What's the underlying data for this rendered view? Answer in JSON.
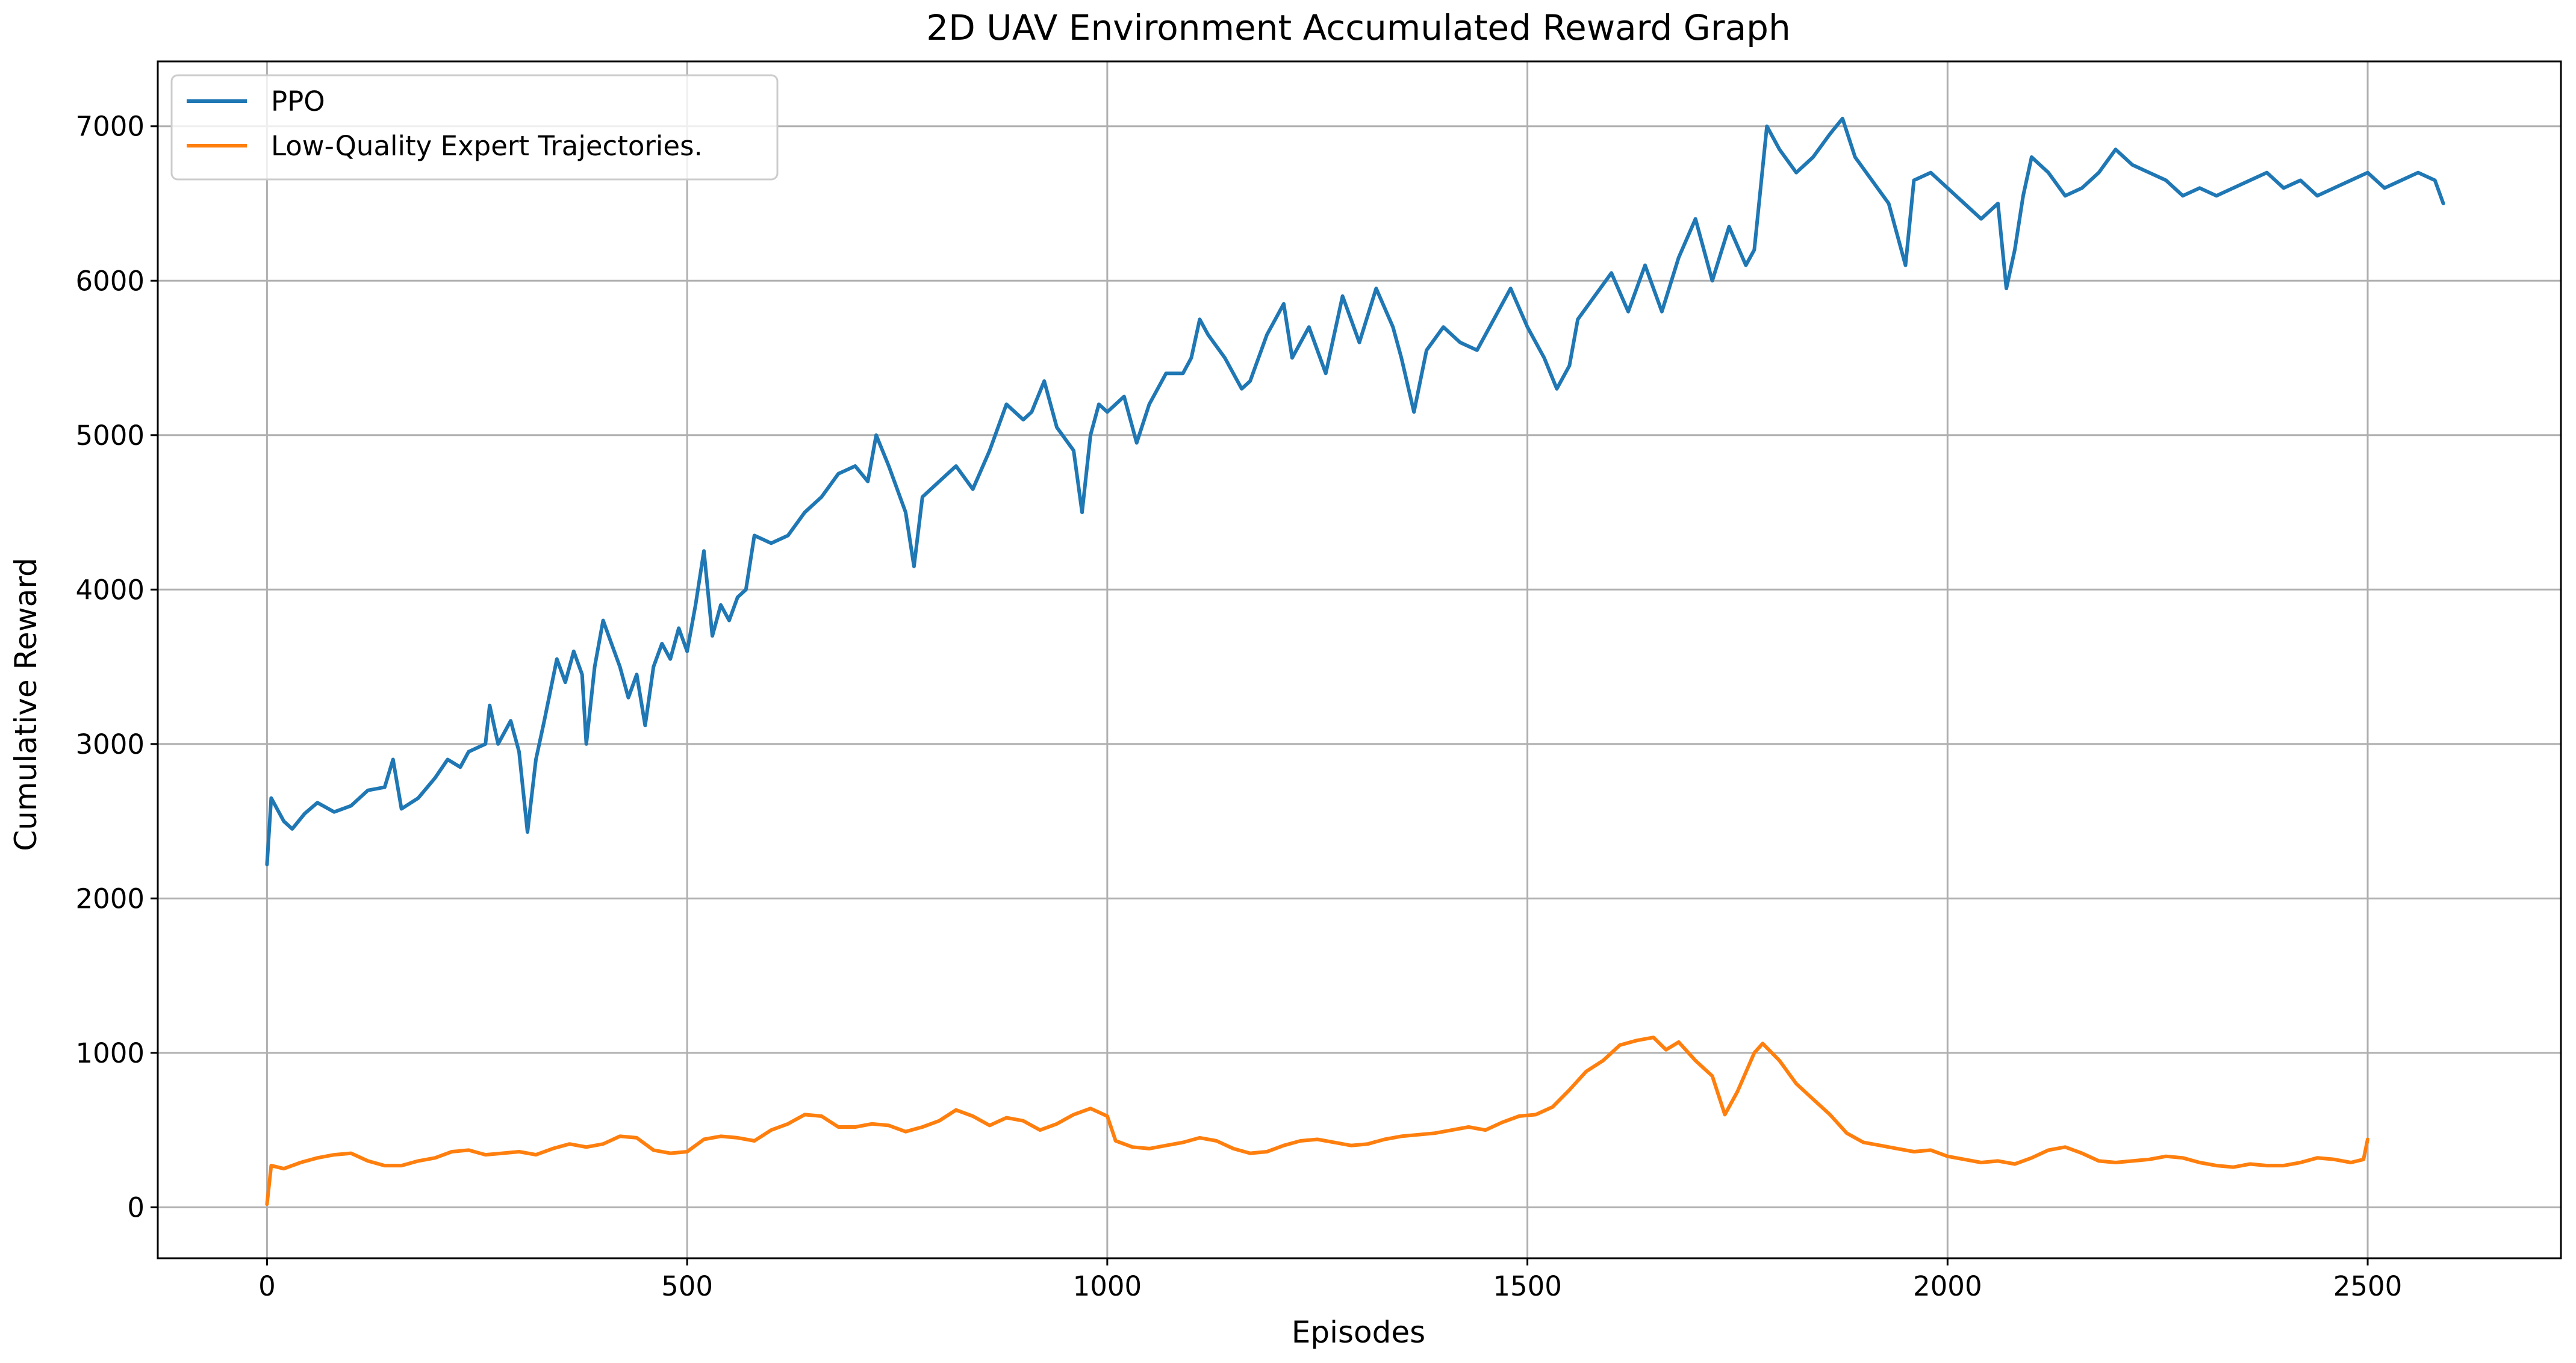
{
  "chart_data": {
    "type": "line",
    "title": "2D UAV Environment Accumulated Reward Graph",
    "xlabel": "Episodes",
    "ylabel": "Cumulative Reward",
    "xlim": [
      -130,
      2730
    ],
    "ylim": [
      -330,
      7420
    ],
    "xticks": [
      0,
      500,
      1000,
      1500,
      2000,
      2500
    ],
    "yticks": [
      0,
      1000,
      2000,
      3000,
      4000,
      5000,
      6000,
      7000
    ],
    "grid": true,
    "legend_position": "upper-left",
    "series": [
      {
        "name": "PPO",
        "color": "#1f77b4",
        "points": [
          [
            0,
            2220
          ],
          [
            5,
            2650
          ],
          [
            20,
            2500
          ],
          [
            30,
            2450
          ],
          [
            45,
            2550
          ],
          [
            60,
            2620
          ],
          [
            80,
            2560
          ],
          [
            100,
            2600
          ],
          [
            120,
            2700
          ],
          [
            140,
            2720
          ],
          [
            150,
            2900
          ],
          [
            160,
            2580
          ],
          [
            180,
            2650
          ],
          [
            200,
            2780
          ],
          [
            215,
            2900
          ],
          [
            230,
            2850
          ],
          [
            240,
            2950
          ],
          [
            260,
            3000
          ],
          [
            265,
            3250
          ],
          [
            275,
            3000
          ],
          [
            290,
            3150
          ],
          [
            300,
            2950
          ],
          [
            310,
            2430
          ],
          [
            320,
            2900
          ],
          [
            330,
            3150
          ],
          [
            345,
            3550
          ],
          [
            355,
            3400
          ],
          [
            365,
            3600
          ],
          [
            375,
            3450
          ],
          [
            380,
            3000
          ],
          [
            390,
            3500
          ],
          [
            400,
            3800
          ],
          [
            410,
            3650
          ],
          [
            420,
            3500
          ],
          [
            430,
            3300
          ],
          [
            440,
            3450
          ],
          [
            450,
            3120
          ],
          [
            460,
            3500
          ],
          [
            470,
            3650
          ],
          [
            480,
            3550
          ],
          [
            490,
            3750
          ],
          [
            500,
            3600
          ],
          [
            510,
            3900
          ],
          [
            520,
            4250
          ],
          [
            530,
            3700
          ],
          [
            540,
            3900
          ],
          [
            550,
            3800
          ],
          [
            560,
            3950
          ],
          [
            570,
            4000
          ],
          [
            580,
            4350
          ],
          [
            600,
            4300
          ],
          [
            620,
            4350
          ],
          [
            640,
            4500
          ],
          [
            660,
            4600
          ],
          [
            680,
            4750
          ],
          [
            700,
            4800
          ],
          [
            715,
            4700
          ],
          [
            725,
            5000
          ],
          [
            740,
            4800
          ],
          [
            760,
            4500
          ],
          [
            770,
            4150
          ],
          [
            780,
            4600
          ],
          [
            800,
            4700
          ],
          [
            820,
            4800
          ],
          [
            840,
            4650
          ],
          [
            860,
            4900
          ],
          [
            880,
            5200
          ],
          [
            900,
            5100
          ],
          [
            910,
            5150
          ],
          [
            925,
            5350
          ],
          [
            940,
            5050
          ],
          [
            960,
            4900
          ],
          [
            970,
            4500
          ],
          [
            980,
            5000
          ],
          [
            990,
            5200
          ],
          [
            1000,
            5150
          ],
          [
            1020,
            5250
          ],
          [
            1035,
            4950
          ],
          [
            1050,
            5200
          ],
          [
            1070,
            5400
          ],
          [
            1090,
            5400
          ],
          [
            1100,
            5500
          ],
          [
            1110,
            5750
          ],
          [
            1120,
            5650
          ],
          [
            1140,
            5500
          ],
          [
            1160,
            5300
          ],
          [
            1170,
            5350
          ],
          [
            1190,
            5650
          ],
          [
            1210,
            5850
          ],
          [
            1220,
            5500
          ],
          [
            1240,
            5700
          ],
          [
            1260,
            5400
          ],
          [
            1280,
            5900
          ],
          [
            1300,
            5600
          ],
          [
            1320,
            5950
          ],
          [
            1340,
            5700
          ],
          [
            1350,
            5500
          ],
          [
            1365,
            5150
          ],
          [
            1380,
            5550
          ],
          [
            1400,
            5700
          ],
          [
            1420,
            5600
          ],
          [
            1440,
            5550
          ],
          [
            1460,
            5750
          ],
          [
            1480,
            5950
          ],
          [
            1500,
            5700
          ],
          [
            1520,
            5500
          ],
          [
            1535,
            5300
          ],
          [
            1550,
            5450
          ],
          [
            1560,
            5750
          ],
          [
            1580,
            5900
          ],
          [
            1600,
            6050
          ],
          [
            1620,
            5800
          ],
          [
            1640,
            6100
          ],
          [
            1660,
            5800
          ],
          [
            1680,
            6150
          ],
          [
            1700,
            6400
          ],
          [
            1720,
            6000
          ],
          [
            1740,
            6350
          ],
          [
            1760,
            6100
          ],
          [
            1770,
            6200
          ],
          [
            1785,
            7000
          ],
          [
            1800,
            6850
          ],
          [
            1820,
            6700
          ],
          [
            1840,
            6800
          ],
          [
            1860,
            6950
          ],
          [
            1875,
            7050
          ],
          [
            1890,
            6800
          ],
          [
            1910,
            6650
          ],
          [
            1930,
            6500
          ],
          [
            1950,
            6100
          ],
          [
            1960,
            6650
          ],
          [
            1980,
            6700
          ],
          [
            2000,
            6600
          ],
          [
            2020,
            6500
          ],
          [
            2040,
            6400
          ],
          [
            2060,
            6500
          ],
          [
            2070,
            5950
          ],
          [
            2080,
            6200
          ],
          [
            2090,
            6550
          ],
          [
            2100,
            6800
          ],
          [
            2120,
            6700
          ],
          [
            2140,
            6550
          ],
          [
            2160,
            6600
          ],
          [
            2180,
            6700
          ],
          [
            2200,
            6850
          ],
          [
            2220,
            6750
          ],
          [
            2240,
            6700
          ],
          [
            2260,
            6650
          ],
          [
            2280,
            6550
          ],
          [
            2300,
            6600
          ],
          [
            2320,
            6550
          ],
          [
            2340,
            6600
          ],
          [
            2360,
            6650
          ],
          [
            2380,
            6700
          ],
          [
            2400,
            6600
          ],
          [
            2420,
            6650
          ],
          [
            2440,
            6550
          ],
          [
            2460,
            6600
          ],
          [
            2480,
            6650
          ],
          [
            2500,
            6700
          ],
          [
            2520,
            6600
          ],
          [
            2540,
            6650
          ],
          [
            2560,
            6700
          ],
          [
            2580,
            6650
          ],
          [
            2590,
            6500
          ]
        ]
      },
      {
        "name": "Low-Quality Expert Trajectories.",
        "color": "#ff7f0e",
        "points": [
          [
            0,
            20
          ],
          [
            5,
            270
          ],
          [
            20,
            250
          ],
          [
            40,
            290
          ],
          [
            60,
            320
          ],
          [
            80,
            340
          ],
          [
            100,
            350
          ],
          [
            120,
            300
          ],
          [
            140,
            270
          ],
          [
            160,
            270
          ],
          [
            180,
            300
          ],
          [
            200,
            320
          ],
          [
            220,
            360
          ],
          [
            240,
            370
          ],
          [
            260,
            340
          ],
          [
            280,
            350
          ],
          [
            300,
            360
          ],
          [
            320,
            340
          ],
          [
            340,
            380
          ],
          [
            360,
            410
          ],
          [
            380,
            390
          ],
          [
            400,
            410
          ],
          [
            420,
            460
          ],
          [
            440,
            450
          ],
          [
            460,
            370
          ],
          [
            480,
            350
          ],
          [
            500,
            360
          ],
          [
            520,
            440
          ],
          [
            540,
            460
          ],
          [
            560,
            450
          ],
          [
            580,
            430
          ],
          [
            600,
            500
          ],
          [
            620,
            540
          ],
          [
            640,
            600
          ],
          [
            660,
            590
          ],
          [
            680,
            520
          ],
          [
            700,
            520
          ],
          [
            720,
            540
          ],
          [
            740,
            530
          ],
          [
            760,
            490
          ],
          [
            780,
            520
          ],
          [
            800,
            560
          ],
          [
            820,
            630
          ],
          [
            840,
            590
          ],
          [
            860,
            530
          ],
          [
            880,
            580
          ],
          [
            900,
            560
          ],
          [
            920,
            500
          ],
          [
            940,
            540
          ],
          [
            960,
            600
          ],
          [
            980,
            640
          ],
          [
            1000,
            590
          ],
          [
            1010,
            430
          ],
          [
            1030,
            390
          ],
          [
            1050,
            380
          ],
          [
            1070,
            400
          ],
          [
            1090,
            420
          ],
          [
            1110,
            450
          ],
          [
            1130,
            430
          ],
          [
            1150,
            380
          ],
          [
            1170,
            350
          ],
          [
            1190,
            360
          ],
          [
            1210,
            400
          ],
          [
            1230,
            430
          ],
          [
            1250,
            440
          ],
          [
            1270,
            420
          ],
          [
            1290,
            400
          ],
          [
            1310,
            410
          ],
          [
            1330,
            440
          ],
          [
            1350,
            460
          ],
          [
            1370,
            470
          ],
          [
            1390,
            480
          ],
          [
            1410,
            500
          ],
          [
            1430,
            520
          ],
          [
            1450,
            500
          ],
          [
            1470,
            550
          ],
          [
            1490,
            590
          ],
          [
            1510,
            600
          ],
          [
            1530,
            650
          ],
          [
            1550,
            760
          ],
          [
            1570,
            880
          ],
          [
            1590,
            950
          ],
          [
            1610,
            1050
          ],
          [
            1630,
            1080
          ],
          [
            1650,
            1100
          ],
          [
            1665,
            1020
          ],
          [
            1680,
            1070
          ],
          [
            1700,
            950
          ],
          [
            1720,
            850
          ],
          [
            1735,
            600
          ],
          [
            1750,
            750
          ],
          [
            1770,
            1000
          ],
          [
            1780,
            1060
          ],
          [
            1800,
            950
          ],
          [
            1820,
            800
          ],
          [
            1840,
            700
          ],
          [
            1860,
            600
          ],
          [
            1880,
            480
          ],
          [
            1900,
            420
          ],
          [
            1920,
            400
          ],
          [
            1940,
            380
          ],
          [
            1960,
            360
          ],
          [
            1980,
            370
          ],
          [
            2000,
            330
          ],
          [
            2020,
            310
          ],
          [
            2040,
            290
          ],
          [
            2060,
            300
          ],
          [
            2080,
            280
          ],
          [
            2100,
            320
          ],
          [
            2120,
            370
          ],
          [
            2140,
            390
          ],
          [
            2160,
            350
          ],
          [
            2180,
            300
          ],
          [
            2200,
            290
          ],
          [
            2220,
            300
          ],
          [
            2240,
            310
          ],
          [
            2260,
            330
          ],
          [
            2280,
            320
          ],
          [
            2300,
            290
          ],
          [
            2320,
            270
          ],
          [
            2340,
            260
          ],
          [
            2360,
            280
          ],
          [
            2380,
            270
          ],
          [
            2400,
            270
          ],
          [
            2420,
            290
          ],
          [
            2440,
            320
          ],
          [
            2460,
            310
          ],
          [
            2480,
            290
          ],
          [
            2495,
            310
          ],
          [
            2500,
            440
          ]
        ]
      }
    ]
  }
}
